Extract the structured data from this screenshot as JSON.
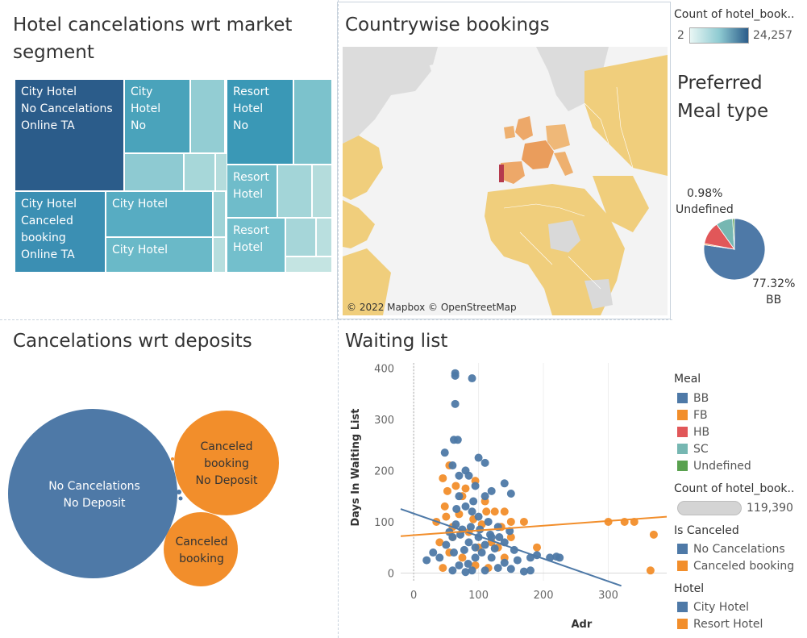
{
  "treemap": {
    "title": "Hotel cancelations wrt market segment",
    "cells": [
      {
        "label": "City Hotel\nNo Cancelations\nOnline TA",
        "color": "#2b5c8a"
      },
      {
        "label": "City\nHotel\nNo",
        "color": "#4aa3bb"
      },
      {
        "label": "Resort\nHotel\nNo",
        "color": "#3a98b6"
      },
      {
        "label": "City Hotel\nCanceled\nbooking\nOnline TA",
        "color": "#3b8fb3"
      },
      {
        "label": "City Hotel",
        "color": "#57acc2"
      },
      {
        "label": "City Hotel",
        "color": "#6ab9c8"
      },
      {
        "label": "Resort\nHotel",
        "color": "#6fbcca"
      },
      {
        "label": "Resort\nHotel",
        "color": "#73bfcc"
      }
    ]
  },
  "map": {
    "title": "Countrywise bookings",
    "attribution": "© 2022 Mapbox © OpenStreetMap",
    "legend_title": "Count of hotel_book..",
    "legend_min": "2",
    "legend_max": "24,257"
  },
  "pie": {
    "title_line1": "Preferred",
    "title_line2": "Meal type",
    "label_small_pct": "0.98%",
    "label_small_name": "Undefined",
    "label_big_pct": "77.32%",
    "label_big_name": "BB",
    "chart_data": {
      "type": "pie",
      "slices": [
        {
          "name": "BB",
          "value": 77.32,
          "color": "#4e79a7"
        },
        {
          "name": "FB",
          "value": 0.67,
          "color": "#f28e2b"
        },
        {
          "name": "HB",
          "value": 12.11,
          "color": "#e15759"
        },
        {
          "name": "SC",
          "value": 8.92,
          "color": "#76b7b2"
        },
        {
          "name": "Undefined",
          "value": 0.98,
          "color": "#59a14f"
        }
      ]
    }
  },
  "bubbles": {
    "title": "Cancelations wrt deposits",
    "items": [
      {
        "line1": "No Cancelations",
        "line2": "No Deposit",
        "color": "#4e79a7"
      },
      {
        "line1": "Canceled",
        "line2": "booking",
        "line3": "No Deposit",
        "color": "#f28e2b"
      },
      {
        "line1": "Canceled",
        "line2": "booking",
        "color": "#f28e2b"
      }
    ]
  },
  "scatter": {
    "title": "Waiting list",
    "chart_data": {
      "type": "scatter",
      "xlabel": "Adr",
      "ylabel": "Days In Waiting List",
      "xlim": [
        -20,
        390
      ],
      "ylim": [
        -15,
        410
      ],
      "x_ticks": [
        0,
        100,
        200,
        300
      ],
      "y_ticks": [
        0,
        100,
        200,
        300,
        400
      ],
      "series": [
        {
          "name": "No Cancelations",
          "color": "#4e79a7",
          "points": [
            [
              64,
              390
            ],
            [
              64,
              385
            ],
            [
              90,
              380
            ],
            [
              64,
              330
            ],
            [
              62,
              260
            ],
            [
              68,
              260
            ],
            [
              48,
              235
            ],
            [
              100,
              225
            ],
            [
              60,
              210
            ],
            [
              110,
              215
            ],
            [
              80,
              200
            ],
            [
              85,
              190
            ],
            [
              70,
              190
            ],
            [
              95,
              170
            ],
            [
              120,
              160
            ],
            [
              140,
              175
            ],
            [
              150,
              155
            ],
            [
              70,
              150
            ],
            [
              110,
              150
            ],
            [
              80,
              130
            ],
            [
              90,
              120
            ],
            [
              100,
              110
            ],
            [
              115,
              100
            ],
            [
              130,
              90
            ],
            [
              65,
              95
            ],
            [
              75,
              85
            ],
            [
              55,
              80
            ],
            [
              85,
              60
            ],
            [
              95,
              50
            ],
            [
              105,
              40
            ],
            [
              120,
              30
            ],
            [
              140,
              20
            ],
            [
              160,
              25
            ],
            [
              180,
              30
            ],
            [
              40,
              30
            ],
            [
              30,
              40
            ],
            [
              20,
              25
            ],
            [
              70,
              15
            ],
            [
              90,
              5
            ],
            [
              110,
              5
            ],
            [
              130,
              10
            ],
            [
              150,
              8
            ],
            [
              170,
              3
            ],
            [
              190,
              35
            ],
            [
              210,
              30
            ],
            [
              220,
              32
            ],
            [
              225,
              30
            ],
            [
              180,
              5
            ],
            [
              60,
              5
            ],
            [
              80,
              2
            ],
            [
              100,
              70
            ],
            [
              120,
              70
            ],
            [
              140,
              60
            ],
            [
              155,
              45
            ],
            [
              50,
              55
            ],
            [
              60,
              70
            ],
            [
              72,
              75
            ],
            [
              88,
              90
            ],
            [
              102,
              85
            ],
            [
              118,
              75
            ],
            [
              132,
              70
            ],
            [
              95,
              30
            ],
            [
              78,
              45
            ],
            [
              110,
              55
            ],
            [
              62,
              40
            ],
            [
              84,
              18
            ],
            [
              125,
              48
            ],
            [
              148,
              82
            ],
            [
              66,
              125
            ],
            [
              92,
              140
            ]
          ]
        },
        {
          "name": "Canceled booking",
          "color": "#f28e2b",
          "points": [
            [
              55,
              210
            ],
            [
              45,
              185
            ],
            [
              65,
              170
            ],
            [
              80,
              165
            ],
            [
              95,
              180
            ],
            [
              52,
              160
            ],
            [
              75,
              150
            ],
            [
              110,
              140
            ],
            [
              125,
              120
            ],
            [
              140,
              120
            ],
            [
              150,
              100
            ],
            [
              50,
              110
            ],
            [
              35,
              100
            ],
            [
              60,
              90
            ],
            [
              85,
              80
            ],
            [
              105,
              95
            ],
            [
              120,
              60
            ],
            [
              135,
              90
            ],
            [
              40,
              60
            ],
            [
              55,
              40
            ],
            [
              75,
              30
            ],
            [
              95,
              15
            ],
            [
              115,
              10
            ],
            [
              130,
              50
            ],
            [
              150,
              70
            ],
            [
              170,
              100
            ],
            [
              190,
              50
            ],
            [
              45,
              10
            ],
            [
              60,
              70
            ],
            [
              300,
              100
            ],
            [
              325,
              100
            ],
            [
              340,
              100
            ],
            [
              365,
              5
            ],
            [
              370,
              75
            ],
            [
              48,
              130
            ],
            [
              70,
              115
            ],
            [
              92,
              105
            ],
            [
              112,
              120
            ],
            [
              100,
              50
            ],
            [
              140,
              30
            ]
          ]
        }
      ],
      "trend_lines": [
        {
          "name": "No Cancelations",
          "color": "#4e79a7",
          "from": [
            -20,
            125
          ],
          "to": [
            320,
            -25
          ]
        },
        {
          "name": "Canceled booking",
          "color": "#f28e2b",
          "from": [
            -20,
            72
          ],
          "to": [
            390,
            110
          ]
        }
      ]
    }
  },
  "legends": {
    "meal": {
      "title": "Meal",
      "items": [
        {
          "label": "BB",
          "color": "#4e79a7"
        },
        {
          "label": "FB",
          "color": "#f28e2b"
        },
        {
          "label": "HB",
          "color": "#e15759"
        },
        {
          "label": "SC",
          "color": "#76b7b2"
        },
        {
          "label": "Undefined",
          "color": "#59a14f"
        }
      ]
    },
    "count": {
      "title": "Count of hotel_book..",
      "value": "119,390"
    },
    "is_canceled": {
      "title": "Is Canceled",
      "items": [
        {
          "label": "No Cancelations",
          "color": "#4e79a7"
        },
        {
          "label": "Canceled booking",
          "color": "#f28e2b"
        }
      ]
    },
    "hotel": {
      "title": "Hotel",
      "items": [
        {
          "label": "City Hotel",
          "color": "#4e79a7"
        },
        {
          "label": "Resort Hotel",
          "color": "#f28e2b"
        }
      ]
    }
  }
}
